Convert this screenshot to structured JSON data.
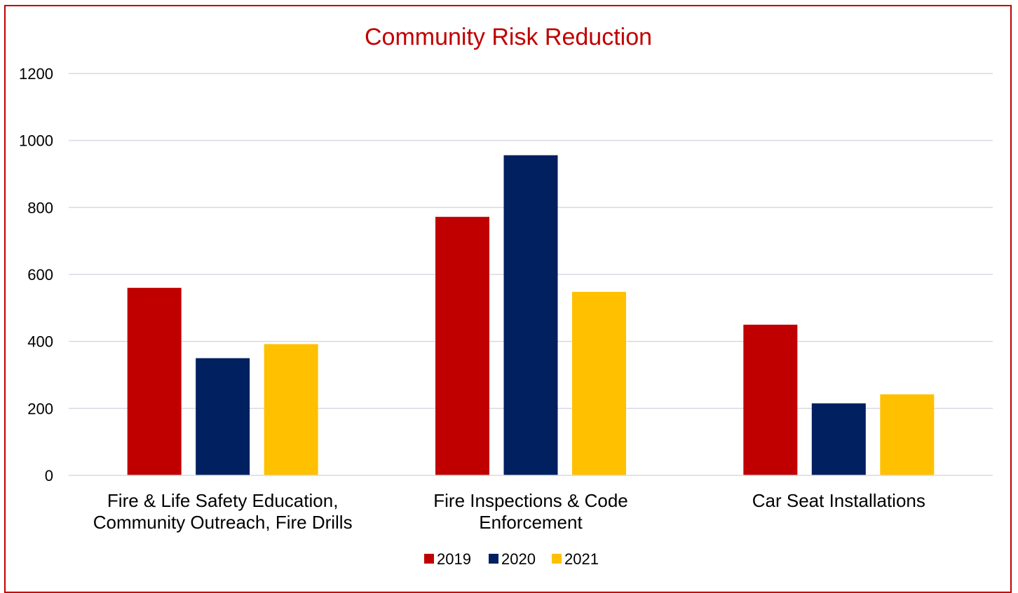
{
  "chart_data": {
    "type": "bar",
    "title": "Community Risk Reduction",
    "xlabel": "",
    "ylabel": "",
    "categories": [
      [
        "Fire & Life Safety Education,",
        "Community Outreach, Fire Drills"
      ],
      [
        "Fire Inspections & Code",
        "Enforcement"
      ],
      [
        "Car Seat Installations"
      ]
    ],
    "series": [
      {
        "name": "2019",
        "color": "#c00000",
        "values": [
          560,
          772,
          450
        ]
      },
      {
        "name": "2020",
        "color": "#002060",
        "values": [
          350,
          956,
          215
        ]
      },
      {
        "name": "2021",
        "color": "#ffc000",
        "values": [
          392,
          548,
          242
        ]
      }
    ],
    "ylim": [
      0,
      1200
    ],
    "yticks": [
      "0",
      "200",
      "400",
      "600",
      "800",
      "1000",
      "1200"
    ],
    "grid": true,
    "legend_position": "bottom",
    "frame_color": "#c00000",
    "gridline_color": "#d9d9e6"
  }
}
